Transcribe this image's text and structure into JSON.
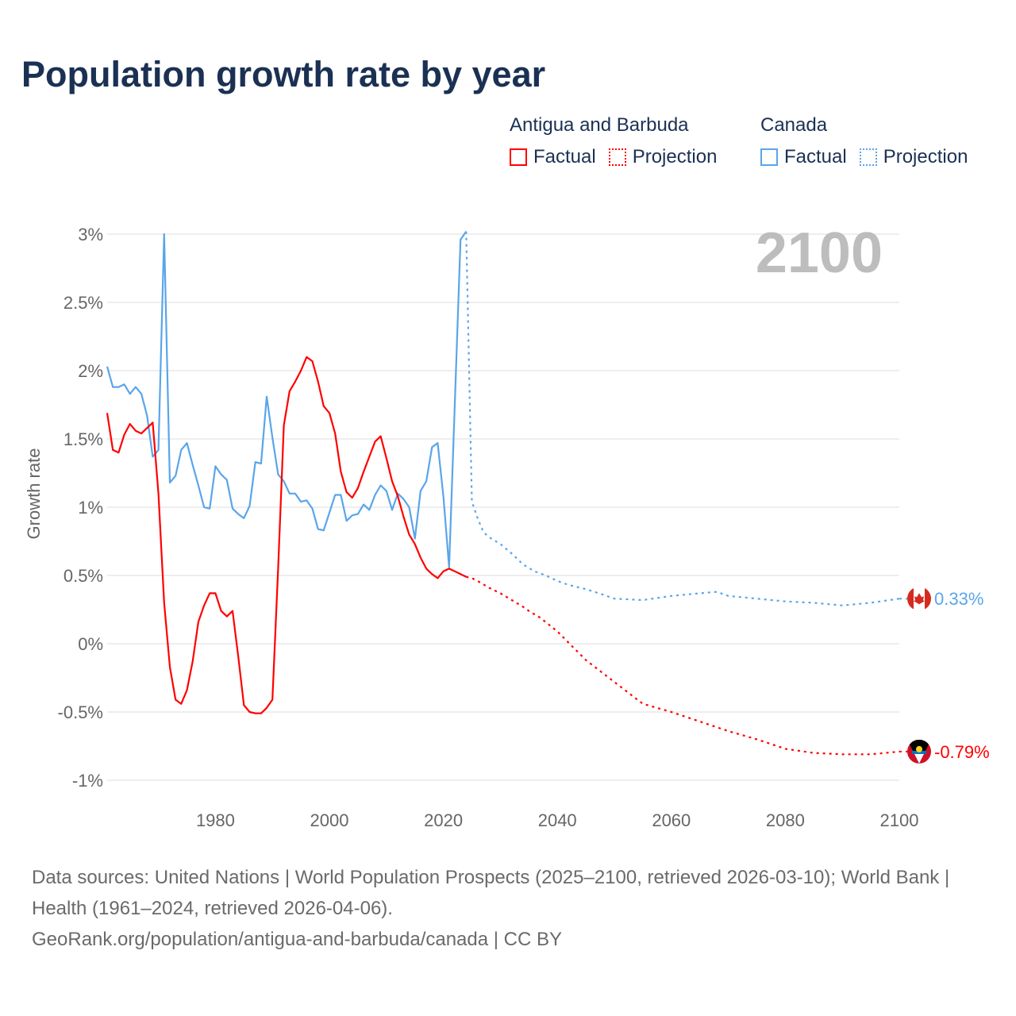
{
  "title": "Population growth rate by year",
  "legend": {
    "groups": [
      {
        "name": "Antigua and Barbuda",
        "color": "#ff0000",
        "factual": "Factual",
        "projection": "Projection"
      },
      {
        "name": "Canada",
        "color": "#5aa5ea",
        "factual": "Factual",
        "projection": "Projection"
      }
    ]
  },
  "footer": {
    "sources": "Data sources: United Nations | World Population Prospects (2025–2100, retrieved 2026-03-10); World Bank | Health (1961–2024, retrieved 2026-04-06).",
    "credit": "GeoRank.org/population/antigua-and-barbuda/canada | CC BY"
  },
  "chart_data": {
    "type": "line",
    "title": "Population growth rate by year",
    "xlabel": "",
    "ylabel": "Growth rate",
    "xlim": [
      1961,
      2100
    ],
    "ylim": [
      -1,
      3
    ],
    "year_label": "2100",
    "x_ticks": [
      1980,
      2000,
      2020,
      2040,
      2060,
      2080,
      2100
    ],
    "y_ticks": [
      {
        "v": 3,
        "label": "3%"
      },
      {
        "v": 2.5,
        "label": "2.5%"
      },
      {
        "v": 2,
        "label": "2%"
      },
      {
        "v": 1.5,
        "label": "1.5%"
      },
      {
        "v": 1,
        "label": "1%"
      },
      {
        "v": 0.5,
        "label": "0.5%"
      },
      {
        "v": 0,
        "label": "0%"
      },
      {
        "v": -0.5,
        "label": "-0.5%"
      },
      {
        "v": -1,
        "label": "-1%"
      }
    ],
    "grid": true,
    "series": [
      {
        "name": "Canada",
        "color": "#5aa5ea",
        "end_label": "0.33%",
        "flag": "canada",
        "factual": {
          "x": [
            1961,
            1962,
            1963,
            1964,
            1965,
            1966,
            1967,
            1968,
            1969,
            1970,
            1971,
            1972,
            1973,
            1974,
            1975,
            1976,
            1977,
            1978,
            1979,
            1980,
            1981,
            1982,
            1983,
            1984,
            1985,
            1986,
            1987,
            1988,
            1989,
            1990,
            1991,
            1992,
            1993,
            1994,
            1995,
            1996,
            1997,
            1998,
            1999,
            2000,
            2001,
            2002,
            2003,
            2004,
            2005,
            2006,
            2007,
            2008,
            2009,
            2010,
            2011,
            2012,
            2013,
            2014,
            2015,
            2016,
            2017,
            2018,
            2019,
            2020,
            2021,
            2022,
            2023,
            2024
          ],
          "y": [
            2.03,
            1.88,
            1.88,
            1.9,
            1.83,
            1.88,
            1.83,
            1.67,
            1.37,
            1.42,
            3.0,
            1.18,
            1.23,
            1.42,
            1.47,
            1.31,
            1.16,
            1.0,
            0.99,
            1.3,
            1.24,
            1.2,
            0.99,
            0.95,
            0.92,
            1.01,
            1.33,
            1.32,
            1.81,
            1.51,
            1.24,
            1.19,
            1.1,
            1.1,
            1.04,
            1.05,
            0.99,
            0.84,
            0.83,
            0.96,
            1.09,
            1.09,
            0.9,
            0.94,
            0.95,
            1.02,
            0.98,
            1.09,
            1.16,
            1.12,
            0.98,
            1.1,
            1.06,
            1.0,
            0.77,
            1.12,
            1.19,
            1.44,
            1.47,
            1.08,
            0.56,
            1.76,
            2.96,
            3.02
          ]
        },
        "projection": {
          "x": [
            2024,
            2025,
            2026,
            2027,
            2028,
            2030,
            2032,
            2034,
            2036,
            2038,
            2040,
            2042,
            2045,
            2048,
            2050,
            2055,
            2060,
            2065,
            2068,
            2070,
            2075,
            2080,
            2085,
            2090,
            2095,
            2100
          ],
          "y": [
            3.02,
            1.04,
            0.92,
            0.82,
            0.78,
            0.73,
            0.66,
            0.58,
            0.53,
            0.5,
            0.46,
            0.43,
            0.4,
            0.36,
            0.33,
            0.32,
            0.35,
            0.37,
            0.38,
            0.35,
            0.33,
            0.31,
            0.3,
            0.28,
            0.3,
            0.33
          ]
        }
      },
      {
        "name": "Antigua and Barbuda",
        "color": "#ff0000",
        "end_label": "-0.79%",
        "flag": "antigua",
        "factual": {
          "x": [
            1961,
            1962,
            1963,
            1964,
            1965,
            1966,
            1967,
            1968,
            1969,
            1970,
            1971,
            1972,
            1973,
            1974,
            1975,
            1976,
            1977,
            1978,
            1979,
            1980,
            1981,
            1982,
            1983,
            1984,
            1985,
            1986,
            1987,
            1988,
            1989,
            1990,
            1991,
            1992,
            1993,
            1994,
            1995,
            1996,
            1997,
            1998,
            1999,
            2000,
            2001,
            2002,
            2003,
            2004,
            2005,
            2006,
            2007,
            2008,
            2009,
            2010,
            2011,
            2012,
            2013,
            2014,
            2015,
            2016,
            2017,
            2018,
            2019,
            2020,
            2021,
            2022,
            2023,
            2024
          ],
          "y": [
            1.69,
            1.42,
            1.4,
            1.53,
            1.61,
            1.56,
            1.54,
            1.58,
            1.62,
            1.1,
            0.3,
            -0.17,
            -0.41,
            -0.44,
            -0.34,
            -0.13,
            0.16,
            0.28,
            0.37,
            0.37,
            0.24,
            0.2,
            0.24,
            -0.09,
            -0.45,
            -0.5,
            -0.51,
            -0.51,
            -0.47,
            -0.41,
            0.55,
            1.6,
            1.85,
            1.92,
            2.0,
            2.1,
            2.07,
            1.92,
            1.74,
            1.69,
            1.54,
            1.26,
            1.11,
            1.07,
            1.14,
            1.26,
            1.37,
            1.48,
            1.52,
            1.36,
            1.19,
            1.08,
            0.93,
            0.8,
            0.73,
            0.63,
            0.55,
            0.51,
            0.48,
            0.53,
            0.55,
            0.53,
            0.51,
            0.49
          ]
        },
        "projection": {
          "x": [
            2024,
            2025,
            2026,
            2028,
            2030,
            2032,
            2034,
            2035,
            2037,
            2040,
            2045,
            2050,
            2055,
            2060,
            2065,
            2070,
            2075,
            2080,
            2085,
            2090,
            2095,
            2100
          ],
          "y": [
            0.49,
            0.48,
            0.46,
            0.41,
            0.37,
            0.32,
            0.27,
            0.24,
            0.19,
            0.09,
            -0.12,
            -0.28,
            -0.44,
            -0.5,
            -0.57,
            -0.64,
            -0.7,
            -0.77,
            -0.8,
            -0.81,
            -0.81,
            -0.79
          ]
        }
      }
    ]
  }
}
